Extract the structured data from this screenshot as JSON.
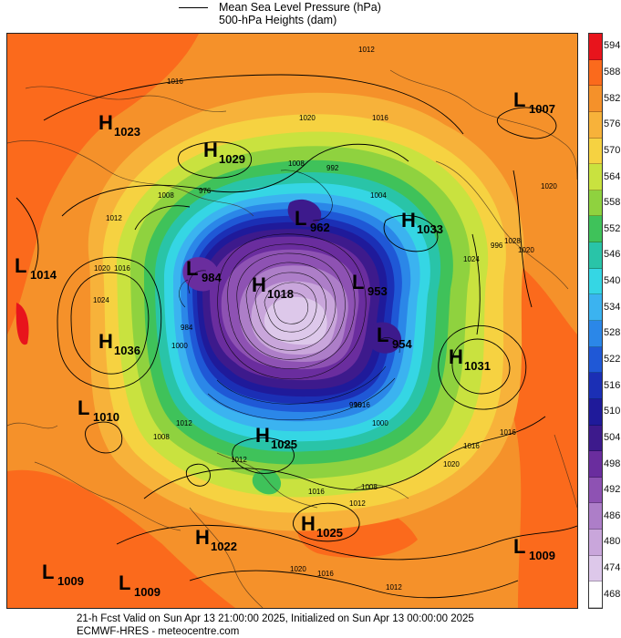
{
  "legend": {
    "mslp_label": "Mean Sea Level Pressure (hPa)",
    "heights_label": "500-hPa Heights (dam)"
  },
  "colorbar": {
    "levels": [
      "594",
      "588",
      "582",
      "576",
      "570",
      "564",
      "558",
      "552",
      "546",
      "540",
      "534",
      "528",
      "522",
      "516",
      "510",
      "504",
      "498",
      "492",
      "486",
      "480",
      "474",
      "468"
    ],
    "colors": [
      "#e8141c",
      "#fb6a1c",
      "#f5912a",
      "#f7b23a",
      "#f6d241",
      "#c9e23f",
      "#8fd23f",
      "#3fc25a",
      "#29c4a8",
      "#35d6e4",
      "#3bb3f0",
      "#2b87e8",
      "#1f58d6",
      "#1b2fb5",
      "#1f1a9a",
      "#3d1a8c",
      "#6a2d9e",
      "#8e52b3",
      "#ad7ec8",
      "#c9a6db",
      "#ddc8ea",
      "#ffffff"
    ]
  },
  "systems": [
    {
      "type": "H",
      "value": "1023"
    },
    {
      "type": "H",
      "value": "1029"
    },
    {
      "type": "L",
      "value": "962"
    },
    {
      "type": "H",
      "value": "1033"
    },
    {
      "type": "L",
      "value": "1007"
    },
    {
      "type": "L",
      "value": "1014"
    },
    {
      "type": "L",
      "value": "984"
    },
    {
      "type": "H",
      "value": "1018"
    },
    {
      "type": "L",
      "value": "953"
    },
    {
      "type": "H",
      "value": "1036"
    },
    {
      "type": "L",
      "value": "954"
    },
    {
      "type": "H",
      "value": "1031"
    },
    {
      "type": "L",
      "value": "1010"
    },
    {
      "type": "H",
      "value": "1025"
    },
    {
      "type": "H",
      "value": "1025"
    },
    {
      "type": "H",
      "value": "1022"
    },
    {
      "type": "L",
      "value": "1009"
    },
    {
      "type": "L",
      "value": "1009"
    },
    {
      "type": "L",
      "value": "1009"
    }
  ],
  "isobar_labels": [
    "1012",
    "1016",
    "1020",
    "1016",
    "1008",
    "992",
    "1004",
    "976",
    "1008",
    "1012",
    "1016",
    "1020",
    "1024",
    "1028",
    "1020",
    "1024",
    "1016",
    "1012",
    "1008",
    "1000",
    "996",
    "984",
    "1000",
    "1016",
    "1020",
    "1016",
    "1012",
    "1016",
    "1020",
    "1016",
    "1012",
    "1020",
    "996",
    "1008",
    "1012"
  ],
  "footer": {
    "line1": "21-h Fcst Valid on Sun Apr 13 21:00:00 2025, Initialized on Sun Apr 13 00:00:00 2025",
    "line2": "ECMWF-HRES - meteocentre.com"
  }
}
